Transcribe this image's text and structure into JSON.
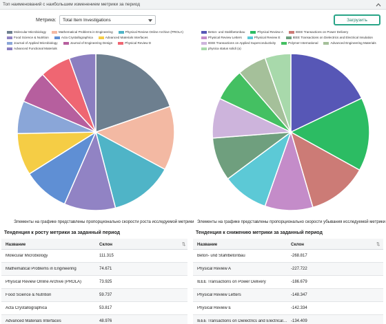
{
  "header": {
    "title": "Топ наименований с наибольшим изменением метрики за период"
  },
  "controls": {
    "metric_label": "Метрика:",
    "metric_value": "Total Item Investigations",
    "load_button": "Загрузить"
  },
  "left_chart": {
    "caption": "Элементы на графике представлены пропорционально скорости роста исследуемой метрики",
    "legend": [
      {
        "label": "Molecular Microbiology",
        "color": "#6d7f8f"
      },
      {
        "label": "Mathematical Problems in Engineering",
        "color": "#f3b9a3"
      },
      {
        "label": "Physical Review Online Archive (PROLA)",
        "color": "#4fb4c7"
      },
      {
        "label": "Food Science & Nutrition",
        "color": "#9183c4"
      },
      {
        "label": "Acta Crystallographica",
        "color": "#5f8fd4"
      },
      {
        "label": "Advanced Materials Interfaces",
        "color": "#f5cd45"
      },
      {
        "label": "Journal of Applied Microbiology",
        "color": "#8aa6d8"
      },
      {
        "label": "Journal of Engineering Design",
        "color": "#b65f9e"
      },
      {
        "label": "Physical Review D",
        "color": "#ef6672"
      },
      {
        "label": "Advanced Functional Materials",
        "color": "#8b7ec0"
      }
    ]
  },
  "right_chart": {
    "caption": "Элементы на графике представлены пропорционально скорости убывания исследуемой метрики",
    "legend": [
      {
        "label": "Beton- und Stahlbetonbau",
        "color": "#5757b6"
      },
      {
        "label": "Physical Review A",
        "color": "#2cbc63"
      },
      {
        "label": "IEEE Transactions on Power Delivery",
        "color": "#cc7b76"
      },
      {
        "label": "Physical Review Letters",
        "color": "#c48cc9"
      },
      {
        "label": "Physical Review E",
        "color": "#5cc9d6"
      },
      {
        "label": "IEEE Transactions on Dielectrics and Electrical Insulation",
        "color": "#6f9f7e"
      },
      {
        "label": "IEEE Transactions on Applied Superconductivity",
        "color": "#cdb4dc"
      },
      {
        "label": "Polymer International",
        "color": "#44c062"
      },
      {
        "label": "Advanced Engineering Materials",
        "color": "#a5c09a"
      },
      {
        "label": "physica status solidi (a)",
        "color": "#a8d9ab"
      }
    ]
  },
  "chart_data": [
    {
      "type": "pie",
      "categories": [
        "Molecular Microbiology",
        "Mathematical Problems in Engineering",
        "Physical Review Online Archive (PROLA)",
        "Food Science & Nutrition",
        "Acta Crystallographica",
        "Advanced Materials Interfaces",
        "Journal of Applied Microbiology",
        "Journal of Engineering Design",
        "Physical Review D",
        "Advanced Functional Materials"
      ],
      "values": [
        111.315,
        74.671,
        73.925,
        59.737,
        53.817,
        48.976,
        38.0,
        38.0,
        36.0,
        31.0
      ]
    },
    {
      "type": "pie",
      "categories": [
        "Beton- und Stahlbetonbau",
        "Physical Review A",
        "IEEE Transactions on Power Delivery",
        "Physical Review Letters",
        "Physical Review E",
        "IEEE Transactions on Dielectrics and Electrical Insulation",
        "IEEE Transactions on Applied Superconductivity",
        "Polymer International",
        "Advanced Engineering Materials",
        "physica status solidi (a)"
      ],
      "values": [
        268.817,
        227.722,
        186.679,
        148.347,
        142.334,
        134.409,
        124.0,
        100.0,
        90.0,
        80.0
      ]
    }
  ],
  "growth_table": {
    "title": "Тенденция к росту метрики за заданный период",
    "col_name": "Название",
    "col_slope": "Склон",
    "rows": [
      {
        "name": "Molecular Microbiology",
        "slope": "111.315"
      },
      {
        "name": "Mathematical Problems in Engineering",
        "slope": "74.671"
      },
      {
        "name": "Physical Review Online Archive (PROLA)",
        "slope": "73.925"
      },
      {
        "name": "Food Science & Nutrition",
        "slope": "59.737"
      },
      {
        "name": "Acta Crystallographica",
        "slope": "53.817"
      },
      {
        "name": "Advanced Materials Interfaces",
        "slope": "48.976"
      }
    ]
  },
  "decline_table": {
    "title": "Тенденция к снижению метрики за заданный период",
    "col_name": "Название",
    "col_slope": "Склон",
    "rows": [
      {
        "name": "Beton- und Stahlbetonbau",
        "slope": "-268.817"
      },
      {
        "name": "Physical Review A",
        "slope": "-227.722"
      },
      {
        "name": "IEEE Transactions on Power Delivery",
        "slope": "-186.679"
      },
      {
        "name": "Physical Review Letters",
        "slope": "-148.347"
      },
      {
        "name": "Physical Review E",
        "slope": "-142.334"
      },
      {
        "name": "IEEE Transactions on Dielectrics and Electrical In...",
        "slope": "-134.409"
      }
    ]
  },
  "icons": {
    "collapse": "chevron-up-icon",
    "sort": "sort-arrows-icon"
  }
}
